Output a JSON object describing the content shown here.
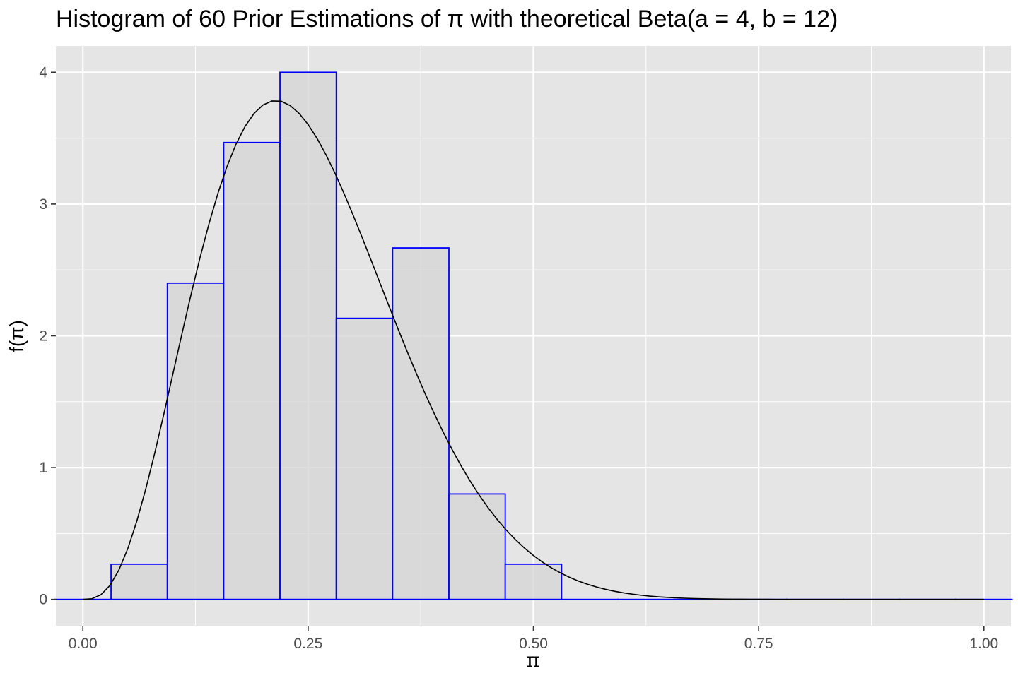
{
  "chart_data": {
    "type": "bar",
    "title": "Histogram of 60 Prior Estimations of π with theoretical Beta(a = 4, b = 12)",
    "xlabel": "π",
    "ylabel": "f(π)",
    "xlim": [
      -0.03,
      1.03
    ],
    "ylim": [
      -0.2,
      4.2
    ],
    "x_ticks": [
      0.0,
      0.25,
      0.5,
      0.75,
      1.0
    ],
    "x_tick_labels": [
      "0.00",
      "0.25",
      "0.50",
      "0.75",
      "1.00"
    ],
    "y_ticks": [
      0,
      1,
      2,
      3,
      4
    ],
    "y_tick_labels": [
      "0",
      "1",
      "2",
      "3",
      "4"
    ],
    "grid": true,
    "histogram": {
      "bin_width": 0.0625,
      "bins": [
        {
          "x0": -0.03125,
          "x1": 0.03125,
          "density": 0.0
        },
        {
          "x0": 0.03125,
          "x1": 0.09375,
          "density": 0.267
        },
        {
          "x0": 0.09375,
          "x1": 0.15625,
          "density": 2.4
        },
        {
          "x0": 0.15625,
          "x1": 0.21875,
          "density": 3.467
        },
        {
          "x0": 0.21875,
          "x1": 0.28125,
          "density": 4.0
        },
        {
          "x0": 0.28125,
          "x1": 0.34375,
          "density": 2.133
        },
        {
          "x0": 0.34375,
          "x1": 0.40625,
          "density": 2.667
        },
        {
          "x0": 0.40625,
          "x1": 0.46875,
          "density": 0.8
        },
        {
          "x0": 0.46875,
          "x1": 0.53125,
          "density": 0.267
        },
        {
          "x0": 0.53125,
          "x1": 0.59375,
          "density": 0.0
        },
        {
          "x0": 0.59375,
          "x1": 0.65625,
          "density": 0.0
        },
        {
          "x0": 0.65625,
          "x1": 0.71875,
          "density": 0.0
        },
        {
          "x0": 0.71875,
          "x1": 0.78125,
          "density": 0.0
        },
        {
          "x0": 0.78125,
          "x1": 0.84375,
          "density": 0.0
        },
        {
          "x0": 0.84375,
          "x1": 0.90625,
          "density": 0.0
        },
        {
          "x0": 0.90625,
          "x1": 0.96875,
          "density": 0.0
        },
        {
          "x0": 0.96875,
          "x1": 1.03125,
          "density": 0.0
        }
      ]
    },
    "curve": {
      "distribution": "beta",
      "a": 4,
      "b": 12,
      "x_range": [
        0,
        1
      ]
    },
    "colors": {
      "panel_bg": "#e5e5e5",
      "grid": "#ffffff",
      "bar_fill": "#d6d6d6",
      "bar_stroke": "#0000ff",
      "curve": "#000000",
      "tick_text": "#4d4d4d",
      "tick_mark": "#333333"
    }
  }
}
